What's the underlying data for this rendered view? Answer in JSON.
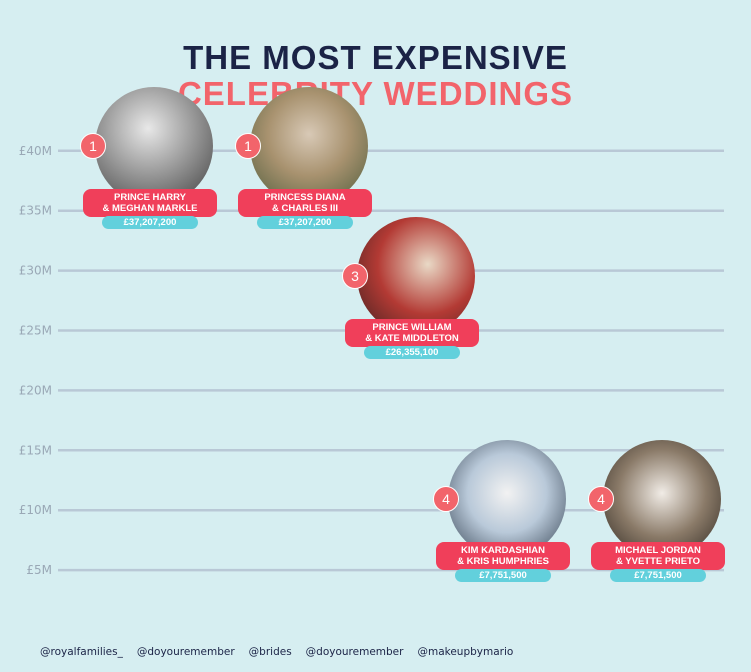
{
  "title_line1": "THE MOST EXPENSIVE",
  "title_line2": "CELEBRITY WEDDINGS",
  "chart_data": {
    "type": "scatter",
    "title": "THE MOST EXPENSIVE CELEBRITY WEDDINGS",
    "ylim": [
      0,
      40
    ],
    "y_ticks": [
      "£5M",
      "£10M",
      "£15M",
      "£20M",
      "£25M",
      "£30M",
      "£35M",
      "£40M"
    ],
    "y_tick_values": [
      5,
      10,
      15,
      20,
      25,
      30,
      35,
      40
    ],
    "grid": true,
    "points": [
      {
        "rank": "1",
        "label_line1": "PRINCE HARRY",
        "label_line2": "& MEGHAN MARKLE",
        "cost": "£37,207,200",
        "value": 37.2072
      },
      {
        "rank": "1",
        "label_line1": "PRINCESS DIANA",
        "label_line2": "& CHARLES III",
        "cost": "£37,207,200",
        "value": 37.2072
      },
      {
        "rank": "3",
        "label_line1": "PRINCE WILLIAM",
        "label_line2": "& KATE MIDDLETON",
        "cost": "£26,355,100",
        "value": 26.3551
      },
      {
        "rank": "4",
        "label_line1": "KIM KARDASHIAN",
        "label_line2": "& KRIS HUMPHRIES",
        "cost": "£7,751,500",
        "value": 7.7515
      },
      {
        "rank": "4",
        "label_line1": "MICHAEL JORDAN",
        "label_line2": "& YVETTE PRIETO",
        "cost": "£7,751,500",
        "value": 7.7515
      }
    ]
  },
  "sources": [
    "@royalfamilies_",
    "@doyouremember",
    "@brides",
    "@doyouremember",
    "@makeupbymario"
  ]
}
